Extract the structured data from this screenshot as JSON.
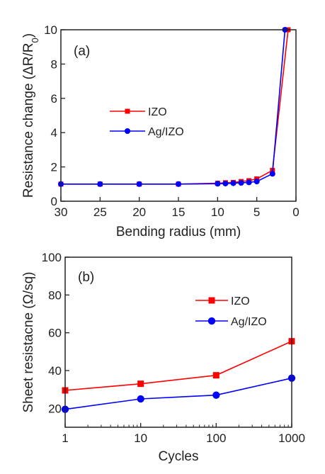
{
  "chart_data": [
    {
      "type": "line",
      "panel_label": "(a)",
      "xlabel": "Bending radius (mm)",
      "ylabel": "Resistance change (ΔR/R",
      "ylabel_sub": "0",
      "ylabel_end": ")",
      "x_reversed": true,
      "xlim": [
        30,
        0
      ],
      "ylim": [
        0,
        10
      ],
      "x_ticks": [
        30,
        25,
        20,
        15,
        10,
        5,
        0
      ],
      "y_ticks": [
        0,
        2,
        4,
        6,
        8,
        10
      ],
      "legend_placement": "middle-left",
      "series": [
        {
          "name": "IZO",
          "color": "#ff0000",
          "marker": "square",
          "x": [
            30,
            25,
            20,
            15,
            10,
            9,
            8,
            7,
            6,
            5,
            3,
            1
          ],
          "y": [
            1.0,
            1.0,
            1.0,
            1.0,
            1.05,
            1.08,
            1.1,
            1.15,
            1.2,
            1.3,
            1.8,
            10.0
          ]
        },
        {
          "name": "Ag/IZO",
          "color": "#0000ff",
          "marker": "circle",
          "x": [
            30,
            25,
            20,
            15,
            10,
            9,
            8,
            7,
            6,
            5,
            3,
            1.4
          ],
          "y": [
            1.0,
            1.0,
            1.0,
            1.0,
            1.02,
            1.03,
            1.05,
            1.07,
            1.1,
            1.15,
            1.6,
            10.0
          ]
        }
      ]
    },
    {
      "type": "line",
      "panel_label": "(b)",
      "xlabel": "Cycles",
      "ylabel": "Sheet resistacne (Ω/sq)",
      "x_scale": "log",
      "xlim": [
        1,
        1000
      ],
      "ylim": [
        10,
        100
      ],
      "x_ticks": [
        1,
        10,
        100,
        1000
      ],
      "y_ticks": [
        20,
        40,
        60,
        80,
        100
      ],
      "legend_placement": "top-right",
      "series": [
        {
          "name": "IZO",
          "color": "#ff0000",
          "marker": "square",
          "x": [
            1,
            10,
            100,
            1000
          ],
          "y": [
            29.5,
            33,
            37.5,
            55.5
          ]
        },
        {
          "name": "Ag/IZO",
          "color": "#0000ff",
          "marker": "circle",
          "x": [
            1,
            10,
            100,
            1000
          ],
          "y": [
            19.5,
            25,
            27,
            36
          ]
        }
      ]
    }
  ]
}
